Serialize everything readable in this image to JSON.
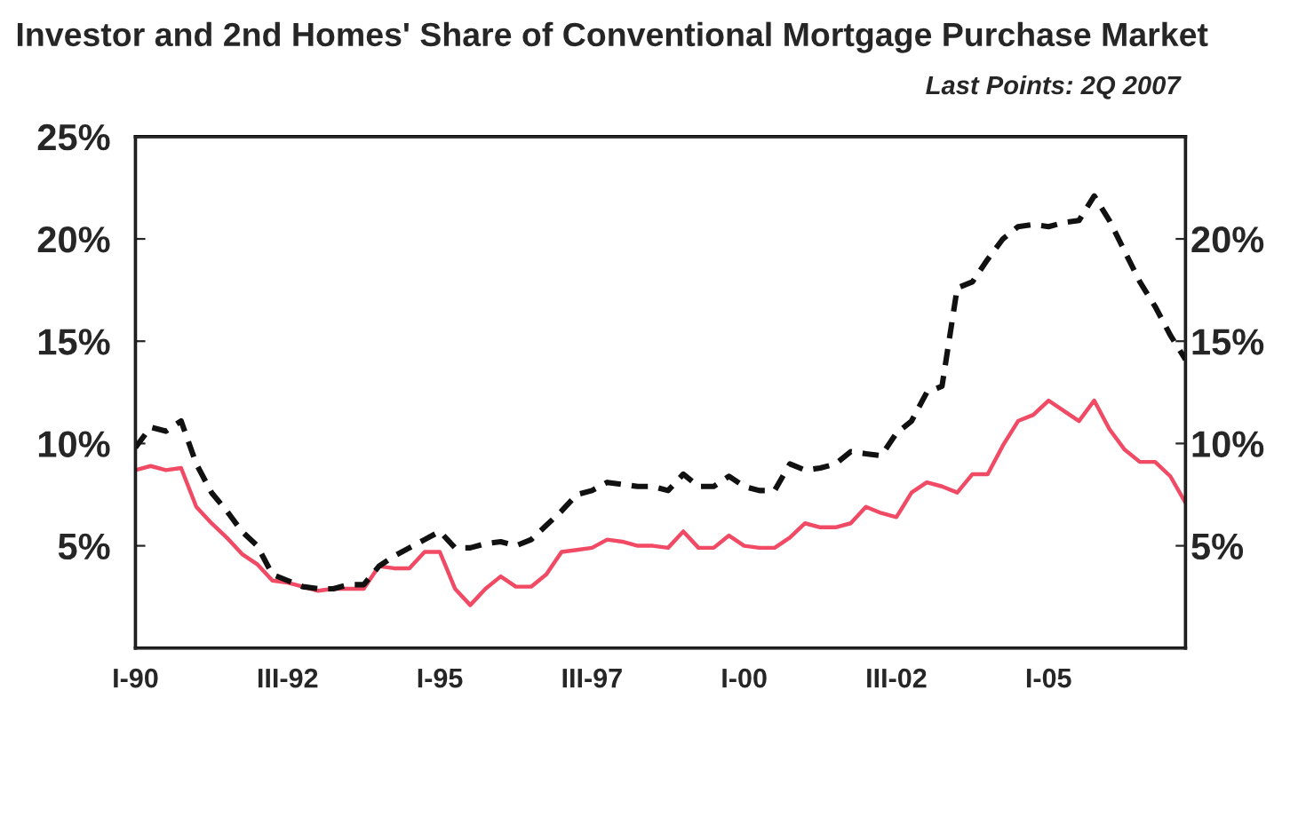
{
  "chart_data": {
    "type": "line",
    "title": "Investor and 2nd Homes' Share of Conventional Mortgage Purchase Market",
    "subtitle": "Last Points: 2Q 2007",
    "categories": [
      "I-90",
      null,
      null,
      null,
      null,
      null,
      null,
      null,
      null,
      null,
      "III-92",
      null,
      null,
      null,
      null,
      null,
      null,
      null,
      null,
      null,
      "I-95",
      null,
      null,
      null,
      null,
      null,
      null,
      null,
      null,
      null,
      "III-97",
      null,
      null,
      null,
      null,
      null,
      null,
      null,
      null,
      null,
      "I-00",
      null,
      null,
      null,
      null,
      null,
      null,
      null,
      null,
      null,
      "III-02",
      null,
      null,
      null,
      null,
      null,
      null,
      null,
      null,
      null,
      "I-05",
      null,
      null,
      null,
      null,
      null,
      null,
      null,
      null,
      null
    ],
    "series": [
      {
        "color": "#f04a64",
        "line_style": "solid",
        "values": [
          8.7,
          8.9,
          8.7,
          8.8,
          6.9,
          6.1,
          5.4,
          4.6,
          4.1,
          3.3,
          3.2,
          3.0,
          2.8,
          2.9,
          2.9,
          2.9,
          4.0,
          3.9,
          3.9,
          4.7,
          4.7,
          2.9,
          2.1,
          2.9,
          3.5,
          3.0,
          3.0,
          3.6,
          4.7,
          4.8,
          4.9,
          5.3,
          5.2,
          5.0,
          5.0,
          4.9,
          5.7,
          4.9,
          4.9,
          5.5,
          5.0,
          4.9,
          4.9,
          5.4,
          6.1,
          5.9,
          5.9,
          6.1,
          6.9,
          6.6,
          6.4,
          7.6,
          8.1,
          7.9,
          7.6,
          8.5,
          8.5,
          9.9,
          11.1,
          11.4,
          12.1,
          11.6,
          11.1,
          12.1,
          10.7,
          9.7,
          9.1,
          9.1,
          8.4,
          7.1
        ]
      },
      {
        "color": "#111111",
        "line_style": "dashed",
        "values": [
          9.8,
          10.8,
          10.6,
          11.1,
          9.0,
          7.6,
          6.7,
          5.7,
          5.0,
          3.6,
          3.3,
          3.0,
          2.9,
          2.9,
          3.1,
          3.1,
          4.0,
          4.5,
          4.9,
          5.3,
          5.7,
          4.9,
          4.9,
          5.1,
          5.2,
          5.0,
          5.3,
          6.0,
          6.7,
          7.5,
          7.7,
          8.1,
          8.0,
          7.9,
          7.9,
          7.7,
          8.5,
          7.9,
          7.9,
          8.4,
          7.9,
          7.7,
          7.7,
          9.0,
          8.7,
          8.8,
          9.0,
          9.6,
          9.5,
          9.4,
          10.5,
          11.1,
          12.5,
          12.8,
          17.6,
          17.9,
          19.0,
          20.0,
          20.6,
          20.7,
          20.6,
          20.8,
          20.9,
          22.1,
          20.9,
          19.4,
          17.9,
          16.7,
          15.3,
          14.1
        ]
      }
    ],
    "ylim": [
      0,
      25
    ],
    "yticks": [
      {
        "value": 5,
        "label": "5%"
      },
      {
        "value": 10,
        "label": "10%"
      },
      {
        "value": 15,
        "label": "15%"
      },
      {
        "value": 20,
        "label": "20%"
      },
      {
        "value": 25,
        "label": "25%"
      }
    ],
    "y2lim": [
      0,
      25
    ],
    "y2ticks": [
      {
        "value": 5,
        "label": "5%"
      },
      {
        "value": 10,
        "label": "10%"
      },
      {
        "value": 15,
        "label": "15%"
      },
      {
        "value": 20,
        "label": "20%"
      }
    ],
    "grid": false,
    "legend": false,
    "marker": "none"
  }
}
